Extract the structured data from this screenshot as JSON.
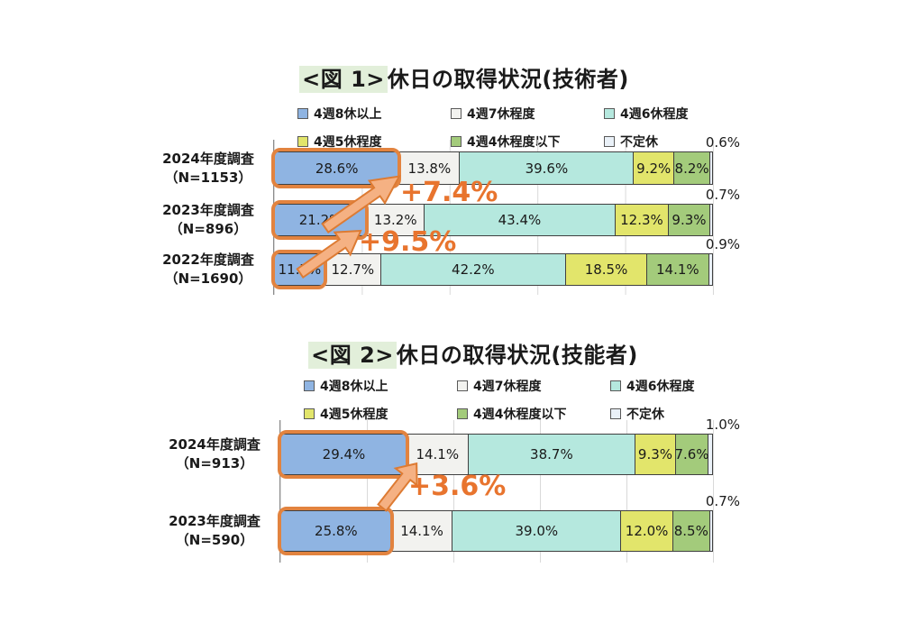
{
  "palette": {
    "series_colors": [
      "#8fb4e2",
      "#f2f2ef",
      "#b5e8de",
      "#e2e56b",
      "#a3cb7b",
      "#eaf1f8"
    ],
    "segment_border": "#404040",
    "highlight_border": "#e2833f",
    "arrow_fill": "#f5b183",
    "arrow_stroke": "#dd7b33",
    "annotation_color": "#e8742e",
    "title_tag_bg": "#e2efda",
    "gridline": "#d9d9d9",
    "axis_line": "#8c8c8c",
    "text": "#1a1a1a",
    "background": "#ffffff"
  },
  "display": {
    "charts": [
      {
        "title_tag": "<図 1>",
        "title_main": "休日の取得状況(技術者)",
        "row_labels": [
          [
            "2024年度調査",
            "（N=1153）"
          ],
          [
            "2023年度調査",
            "（N=896）"
          ],
          [
            "2022年度調査",
            "（N=1690）"
          ]
        ]
      },
      {
        "title_tag": "<図 2>",
        "title_main": "休日の取得状況(技能者)",
        "row_labels": [
          [
            "2024年度調査",
            "（N=913）"
          ],
          [
            "2023年度調査",
            "（N=590）"
          ]
        ]
      }
    ]
  },
  "chart_data": [
    {
      "type": "bar",
      "subtype": "horizontal-stacked",
      "title": "<図 1>休日の取得状況(技術者)",
      "categories": [
        "2024年度調査（N=1153）",
        "2023年度調査（N=896）",
        "2022年度調査（N=1690）"
      ],
      "series": [
        {
          "name": "4週8休以上",
          "values": [
            28.6,
            21.2,
            11.7
          ]
        },
        {
          "name": "4週7休程度",
          "values": [
            13.8,
            13.2,
            12.7
          ]
        },
        {
          "name": "4週6休程度",
          "values": [
            39.6,
            43.4,
            42.2
          ]
        },
        {
          "name": "4週5休程度",
          "values": [
            9.2,
            12.3,
            18.5
          ]
        },
        {
          "name": "4週4休程度以下",
          "values": [
            8.2,
            9.3,
            14.1
          ]
        },
        {
          "name": "不定休",
          "values": [
            0.6,
            0.7,
            0.9
          ]
        }
      ],
      "annotations": [
        "+7.4%",
        "+9.5%"
      ],
      "xlim": [
        0,
        100
      ],
      "unit": "%",
      "legend_position": "top",
      "grid": true
    },
    {
      "type": "bar",
      "subtype": "horizontal-stacked",
      "title": "<図 2>休日の取得状況(技能者)",
      "categories": [
        "2024年度調査（N=913）",
        "2023年度調査（N=590）"
      ],
      "series": [
        {
          "name": "4週8休以上",
          "values": [
            29.4,
            25.8
          ]
        },
        {
          "name": "4週7休程度",
          "values": [
            14.1,
            14.1
          ]
        },
        {
          "name": "4週6休程度",
          "values": [
            38.7,
            39.0
          ]
        },
        {
          "name": "4週5休程度",
          "values": [
            9.3,
            12.0
          ]
        },
        {
          "name": "4週4休程度以下",
          "values": [
            7.6,
            8.5
          ]
        },
        {
          "name": "不定休",
          "values": [
            1.0,
            0.7
          ]
        }
      ],
      "annotations": [
        "+3.6%"
      ],
      "xlim": [
        0,
        100
      ],
      "unit": "%",
      "legend_position": "top",
      "grid": true
    }
  ]
}
